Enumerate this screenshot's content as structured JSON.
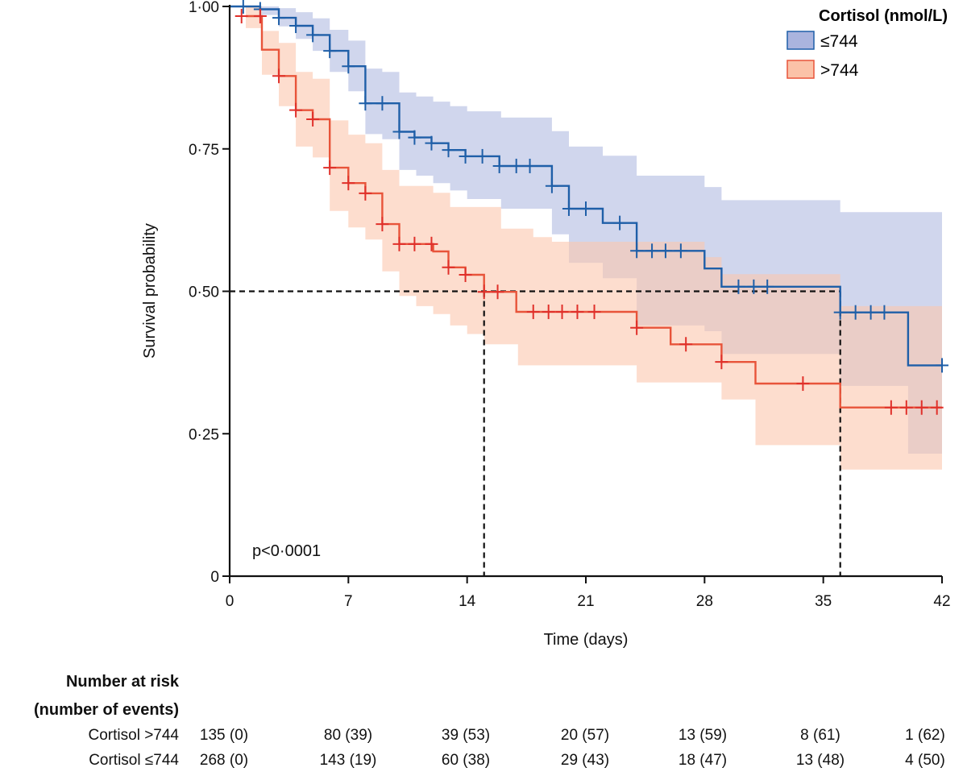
{
  "chart_data": {
    "type": "line",
    "subtype": "kaplan-meier",
    "xlabel": "Time (days)",
    "ylabel": "Survival probability",
    "xlim": [
      0,
      42
    ],
    "ylim": [
      0,
      1
    ],
    "xticks": [
      "0",
      "7",
      "14",
      "21",
      "28",
      "35",
      "42"
    ],
    "xtick_values": [
      0,
      7,
      14,
      21,
      28,
      35,
      42
    ],
    "yticks": [
      "0",
      "0·25",
      "0·50",
      "0·75",
      "1·00"
    ],
    "ytick_values": [
      0,
      0.25,
      0.5,
      0.75,
      1.0
    ],
    "grid": false,
    "annotation": "p<0·0001",
    "median_lines": {
      "y": 0.5,
      "x": [
        15,
        36
      ]
    },
    "legend": {
      "title": "Cortisol (nmol/L)",
      "position": "top-right"
    },
    "series": [
      {
        "name": "≤744",
        "color": "#1f5fa8",
        "band_color": "#a9b4de",
        "steps": [
          [
            0,
            1.0
          ],
          [
            1.8,
            0.995
          ],
          [
            2.9,
            0.98
          ],
          [
            3.9,
            0.966
          ],
          [
            4.9,
            0.95
          ],
          [
            5.9,
            0.922
          ],
          [
            7,
            0.895
          ],
          [
            8,
            0.83
          ],
          [
            10,
            0.78
          ],
          [
            10.9,
            0.77
          ],
          [
            11.9,
            0.76
          ],
          [
            12.9,
            0.748
          ],
          [
            13.9,
            0.737
          ],
          [
            15.9,
            0.72
          ],
          [
            19,
            0.685
          ],
          [
            20,
            0.645
          ],
          [
            22,
            0.62
          ],
          [
            24,
            0.571
          ],
          [
            28,
            0.54
          ],
          [
            29,
            0.508
          ],
          [
            36,
            0.463
          ],
          [
            40,
            0.37
          ]
        ],
        "end": 42,
        "censored": [
          0.8,
          1.8,
          2.9,
          3.9,
          4.9,
          5.9,
          7,
          8,
          9,
          10,
          10.9,
          11.9,
          12.9,
          13.9,
          14.9,
          15.9,
          16.9,
          17.7,
          19,
          20,
          21,
          23,
          24,
          24.9,
          25.7,
          26.6,
          30,
          30.9,
          31.7,
          36,
          36.9,
          37.8,
          38.6,
          42
        ],
        "ci_upper": [
          [
            0,
            1.0
          ],
          [
            2.9,
            0.997
          ],
          [
            3.9,
            0.99
          ],
          [
            4.9,
            0.979
          ],
          [
            5.9,
            0.959
          ],
          [
            7,
            0.94
          ],
          [
            8,
            0.891
          ],
          [
            9,
            0.885
          ],
          [
            10,
            0.849
          ],
          [
            11,
            0.842
          ],
          [
            12,
            0.833
          ],
          [
            13,
            0.825
          ],
          [
            14,
            0.816
          ],
          [
            16,
            0.805
          ],
          [
            19,
            0.781
          ],
          [
            20,
            0.754
          ],
          [
            22,
            0.738
          ],
          [
            24,
            0.703
          ],
          [
            28,
            0.683
          ],
          [
            29,
            0.66
          ],
          [
            36,
            0.639
          ]
        ],
        "ci_lower": [
          [
            0,
            1.0
          ],
          [
            1.8,
            0.985
          ],
          [
            2.9,
            0.965
          ],
          [
            3.9,
            0.943
          ],
          [
            4.9,
            0.922
          ],
          [
            5.9,
            0.885
          ],
          [
            7,
            0.851
          ],
          [
            8,
            0.776
          ],
          [
            9,
            0.767
          ],
          [
            10,
            0.713
          ],
          [
            11,
            0.703
          ],
          [
            12,
            0.69
          ],
          [
            13,
            0.677
          ],
          [
            14,
            0.662
          ],
          [
            16,
            0.645
          ],
          [
            19,
            0.6
          ],
          [
            20,
            0.55
          ],
          [
            22,
            0.523
          ],
          [
            24,
            0.44
          ],
          [
            28,
            0.43
          ],
          [
            29,
            0.39
          ],
          [
            36,
            0.334
          ],
          [
            40,
            0.215
          ]
        ]
      },
      {
        "name": ">744",
        "color": "#e8543a",
        "band_color": "#fbc7ae",
        "steps": [
          [
            0.95,
            0.983
          ],
          [
            1.9,
            0.924
          ],
          [
            2.9,
            0.878
          ],
          [
            3.9,
            0.818
          ],
          [
            4.9,
            0.802
          ],
          [
            5.9,
            0.717
          ],
          [
            7,
            0.69
          ],
          [
            8,
            0.672
          ],
          [
            9,
            0.618
          ],
          [
            10,
            0.583
          ],
          [
            12,
            0.57
          ],
          [
            12.9,
            0.542
          ],
          [
            13.9,
            0.529
          ],
          [
            15,
            0.499
          ],
          [
            16.9,
            0.464
          ],
          [
            24,
            0.436
          ],
          [
            26,
            0.407
          ],
          [
            29,
            0.376
          ],
          [
            31,
            0.338
          ],
          [
            36,
            0.296
          ]
        ],
        "end": 42,
        "censored": [
          0.7,
          1.8,
          2.9,
          3.9,
          4.9,
          5.9,
          7,
          8,
          9,
          10,
          10.9,
          11.9,
          12.9,
          13.9,
          15,
          15.8,
          17.9,
          18.8,
          19.6,
          20.5,
          21.5,
          24,
          26.9,
          29,
          33.8,
          39,
          39.9,
          40.8,
          41.7
        ],
        "ci_upper": [
          [
            0.95,
            1.0
          ],
          [
            1.9,
            0.957
          ],
          [
            2.9,
            0.936
          ],
          [
            3.9,
            0.885
          ],
          [
            4.9,
            0.873
          ],
          [
            5.9,
            0.8
          ],
          [
            7,
            0.775
          ],
          [
            8,
            0.76
          ],
          [
            9,
            0.713
          ],
          [
            10,
            0.685
          ],
          [
            12,
            0.673
          ],
          [
            13,
            0.648
          ],
          [
            16,
            0.61
          ],
          [
            17.9,
            0.595
          ],
          [
            19,
            0.587
          ],
          [
            28,
            0.56
          ],
          [
            29,
            0.53
          ],
          [
            36,
            0.474
          ]
        ],
        "ci_lower": [
          [
            0.95,
            0.962
          ],
          [
            1.9,
            0.88
          ],
          [
            2.9,
            0.825
          ],
          [
            3.9,
            0.754
          ],
          [
            4.9,
            0.735
          ],
          [
            5.9,
            0.641
          ],
          [
            7,
            0.612
          ],
          [
            8,
            0.591
          ],
          [
            9,
            0.535
          ],
          [
            10,
            0.492
          ],
          [
            11,
            0.474
          ],
          [
            12,
            0.46
          ],
          [
            13,
            0.44
          ],
          [
            14,
            0.425
          ],
          [
            15,
            0.407
          ],
          [
            17,
            0.37
          ],
          [
            24,
            0.34
          ],
          [
            29,
            0.31
          ],
          [
            31,
            0.23
          ],
          [
            36,
            0.187
          ]
        ]
      }
    ]
  },
  "risk_table": {
    "title_line1": "Number at risk",
    "title_line2": "(number of events)",
    "rows": [
      {
        "label": "Cortisol >744",
        "values": [
          "135 (0)",
          "80 (39)",
          "39 (53)",
          "20 (57)",
          "13 (59)",
          "8 (61)",
          "1 (62)"
        ]
      },
      {
        "label": "Cortisol ≤744",
        "values": [
          "268 (0)",
          "143 (19)",
          "60 (38)",
          "29 (43)",
          "18 (47)",
          "13 (48)",
          "4 (50)"
        ]
      }
    ]
  }
}
